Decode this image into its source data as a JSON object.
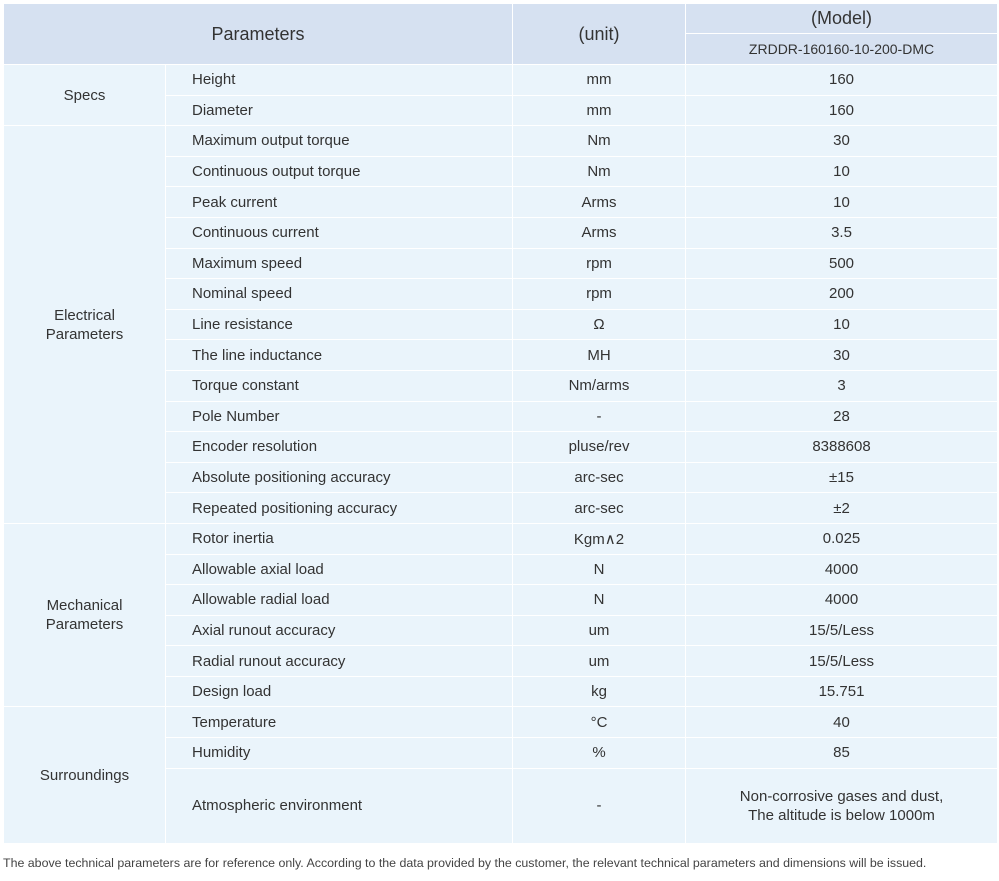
{
  "header": {
    "parameters": "Parameters",
    "unit": "(unit)",
    "model": "(Model)",
    "model_name": "ZRDDR-160160-10-200-DMC"
  },
  "groups": [
    {
      "name": "Specs",
      "rows": [
        [
          "Height",
          "mm",
          "160"
        ],
        [
          "Diameter",
          "mm",
          "160"
        ]
      ]
    },
    {
      "name": "Electrical Parameters",
      "rows": [
        [
          "Maximum output torque",
          "Nm",
          "30"
        ],
        [
          "Continuous output torque",
          "Nm",
          "10"
        ],
        [
          "Peak current",
          "Arms",
          "10"
        ],
        [
          "Continuous current",
          "Arms",
          "3.5"
        ],
        [
          "Maximum speed",
          "rpm",
          "500"
        ],
        [
          "Nominal speed",
          "rpm",
          "200"
        ],
        [
          "Line resistance",
          "Ω",
          "10"
        ],
        [
          "The line inductance",
          "MH",
          "30"
        ],
        [
          "Torque constant",
          "Nm/arms",
          "3"
        ],
        [
          "Pole Number",
          "-",
          "28"
        ],
        [
          "Encoder resolution",
          "pluse/rev",
          "8388608"
        ],
        [
          "Absolute positioning accuracy",
          "arc-sec",
          "±15"
        ],
        [
          "Repeated positioning accuracy",
          "arc-sec",
          "±2"
        ]
      ]
    },
    {
      "name": "Mechanical Parameters",
      "rows": [
        [
          "Rotor inertia",
          "Kgm∧2",
          "0.025"
        ],
        [
          "Allowable axial load",
          "N",
          "4000"
        ],
        [
          "Allowable radial load",
          "N",
          "4000"
        ],
        [
          "Axial runout accuracy",
          "um",
          "15/5/Less"
        ],
        [
          "Radial runout accuracy",
          "um",
          "15/5/Less"
        ],
        [
          "Design load",
          "kg",
          "15.751"
        ]
      ]
    },
    {
      "name": "Surroundings",
      "rows": [
        [
          "Temperature",
          "°C",
          "40"
        ],
        [
          "Humidity",
          "%",
          "85"
        ],
        [
          "Atmospheric environment",
          "-",
          [
            "Non-corrosive gases and dust,",
            "The altitude is below 1000m"
          ]
        ]
      ]
    }
  ],
  "footnote": "The above technical parameters are for reference only. According to the data provided by the customer, the relevant technical parameters and dimensions will be issued."
}
